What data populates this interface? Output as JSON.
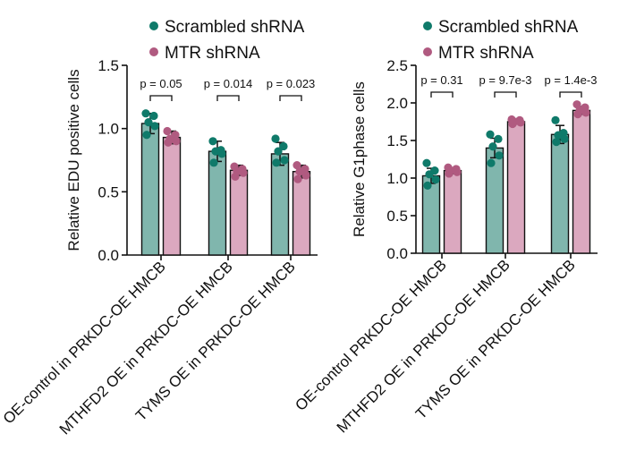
{
  "colors": {
    "scrambled_bar": "#80b6ad",
    "scrambled_dot": "#0f7a6a",
    "mtr_bar": "#dba8bf",
    "mtr_dot": "#b05a80",
    "axis": "#111111"
  },
  "chart_data": [
    {
      "type": "bar",
      "ylabel": "Relative EDU positive cells",
      "ylim": [
        0,
        1.5
      ],
      "yticks": [
        "0.0",
        "0.5",
        "1.0",
        "1.5"
      ],
      "categories": [
        "OE-control in PRKDC-OE HMCB",
        "MTHFD2 OE in PRKDC-OE HMCB",
        "TYMS OE in PRKDC-OE HMCB"
      ],
      "legend": [
        "Scrambled shRNA",
        "MTR shRNA"
      ],
      "series": [
        {
          "name": "Scrambled shRNA",
          "values": [
            1.04,
            0.82,
            0.8
          ],
          "errors": [
            0.08,
            0.08,
            0.09
          ],
          "points": [
            [
              1.12,
              1.1,
              1.05,
              1.02,
              0.95
            ],
            [
              0.9,
              0.83,
              0.82,
              0.8,
              0.73
            ],
            [
              0.92,
              0.86,
              0.82,
              0.75,
              0.73
            ]
          ]
        },
        {
          "name": "MTR shRNA",
          "values": [
            0.93,
            0.67,
            0.66
          ],
          "errors": [
            0.05,
            0.04,
            0.05
          ],
          "points": [
            [
              0.98,
              0.95,
              0.92,
              0.9,
              0.89
            ],
            [
              0.7,
              0.68,
              0.66,
              0.65,
              0.62
            ],
            [
              0.71,
              0.68,
              0.66,
              0.63,
              0.6
            ]
          ]
        }
      ],
      "pvalues": [
        "p = 0.05",
        "p = 0.014",
        "p = 0.023"
      ]
    },
    {
      "type": "bar",
      "ylabel": "Relative G1phase cells",
      "ylim": [
        0,
        2.5
      ],
      "yticks": [
        "0.0",
        "0.5",
        "1.0",
        "1.5",
        "2.0",
        "2.5"
      ],
      "categories": [
        "OE-control PRKDC-OE HMCB",
        "MTHFD2 OE in PRKDC-OE HMCB",
        "TYMS OE in PRKDC-OE HMCB"
      ],
      "legend": [
        "Scrambled shRNA",
        "MTR shRNA"
      ],
      "series": [
        {
          "name": "Scrambled shRNA",
          "values": [
            1.03,
            1.4,
            1.58
          ],
          "errors": [
            0.1,
            0.13,
            0.12
          ],
          "points": [
            [
              1.2,
              1.1,
              1.05,
              0.98,
              0.9
            ],
            [
              1.58,
              1.52,
              1.42,
              1.3,
              1.2
            ],
            [
              1.77,
              1.6,
              1.57,
              1.52,
              1.48
            ]
          ]
        },
        {
          "name": "MTR shRNA",
          "values": [
            1.1,
            1.75,
            1.9
          ],
          "errors": [
            0.04,
            0.03,
            0.05
          ],
          "points": [
            [
              1.14,
              1.12,
              1.1,
              1.08,
              1.06
            ],
            [
              1.78,
              1.77,
              1.75,
              1.74,
              1.72
            ],
            [
              1.98,
              1.94,
              1.9,
              1.87,
              1.85
            ]
          ]
        }
      ],
      "pvalues": [
        "p = 0.31",
        "p = 9.7e-3",
        "p = 1.4e-3"
      ]
    }
  ]
}
